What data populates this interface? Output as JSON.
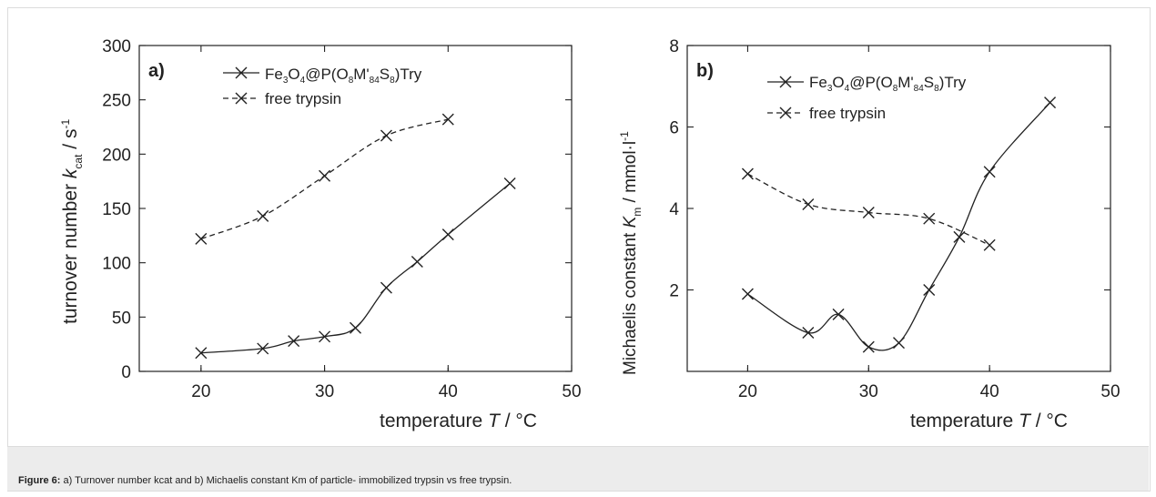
{
  "chart_data": [
    {
      "type": "line",
      "panel_label": "a)",
      "xlabel": "temperature T / °C",
      "ylabel": "turnover number k_cat / s^-1",
      "xlim": [
        15,
        50
      ],
      "ylim": [
        0,
        300
      ],
      "xticks": [
        20,
        30,
        40,
        50
      ],
      "yticks": [
        0,
        50,
        100,
        150,
        200,
        250,
        300
      ],
      "legend_position": "top-left",
      "series": [
        {
          "name": "Fe3O4@P(O8M'84S8)Try",
          "style": "solid",
          "x": [
            20,
            25,
            27.5,
            30,
            32.5,
            35,
            37.5,
            40,
            45
          ],
          "y": [
            17,
            21,
            28,
            32,
            40,
            77,
            101,
            126,
            173
          ]
        },
        {
          "name": "free trypsin",
          "style": "dashed",
          "x": [
            20,
            25,
            30,
            35,
            40
          ],
          "y": [
            122,
            143,
            180,
            217,
            232
          ]
        }
      ]
    },
    {
      "type": "line",
      "panel_label": "b)",
      "xlabel": "temperature T / °C",
      "ylabel": "Michaelis constant K_m / mmol·l^-1",
      "xlim": [
        15,
        50
      ],
      "ylim": [
        0,
        8
      ],
      "xticks": [
        20,
        30,
        40,
        50
      ],
      "yticks": [
        2,
        4,
        6,
        8
      ],
      "legend_position": "top-left",
      "series": [
        {
          "name": "Fe3O4@P(O8M'84S8)Try",
          "style": "solid",
          "x": [
            20,
            25,
            27.5,
            30,
            32.5,
            35,
            37.5,
            40,
            45
          ],
          "y": [
            1.9,
            0.95,
            1.4,
            0.6,
            0.7,
            2.0,
            3.3,
            4.9,
            6.6
          ]
        },
        {
          "name": "free trypsin",
          "style": "dashed",
          "x": [
            20,
            25,
            30,
            35,
            40
          ],
          "y": [
            4.85,
            4.1,
            3.9,
            3.75,
            3.1
          ]
        }
      ]
    }
  ],
  "caption": {
    "label": "Figure 6:",
    "text": "a) Turnover  number  kcat and b)  Michaelis constant   Km of particle-  immobilized trypsin  vs  free trypsin."
  }
}
